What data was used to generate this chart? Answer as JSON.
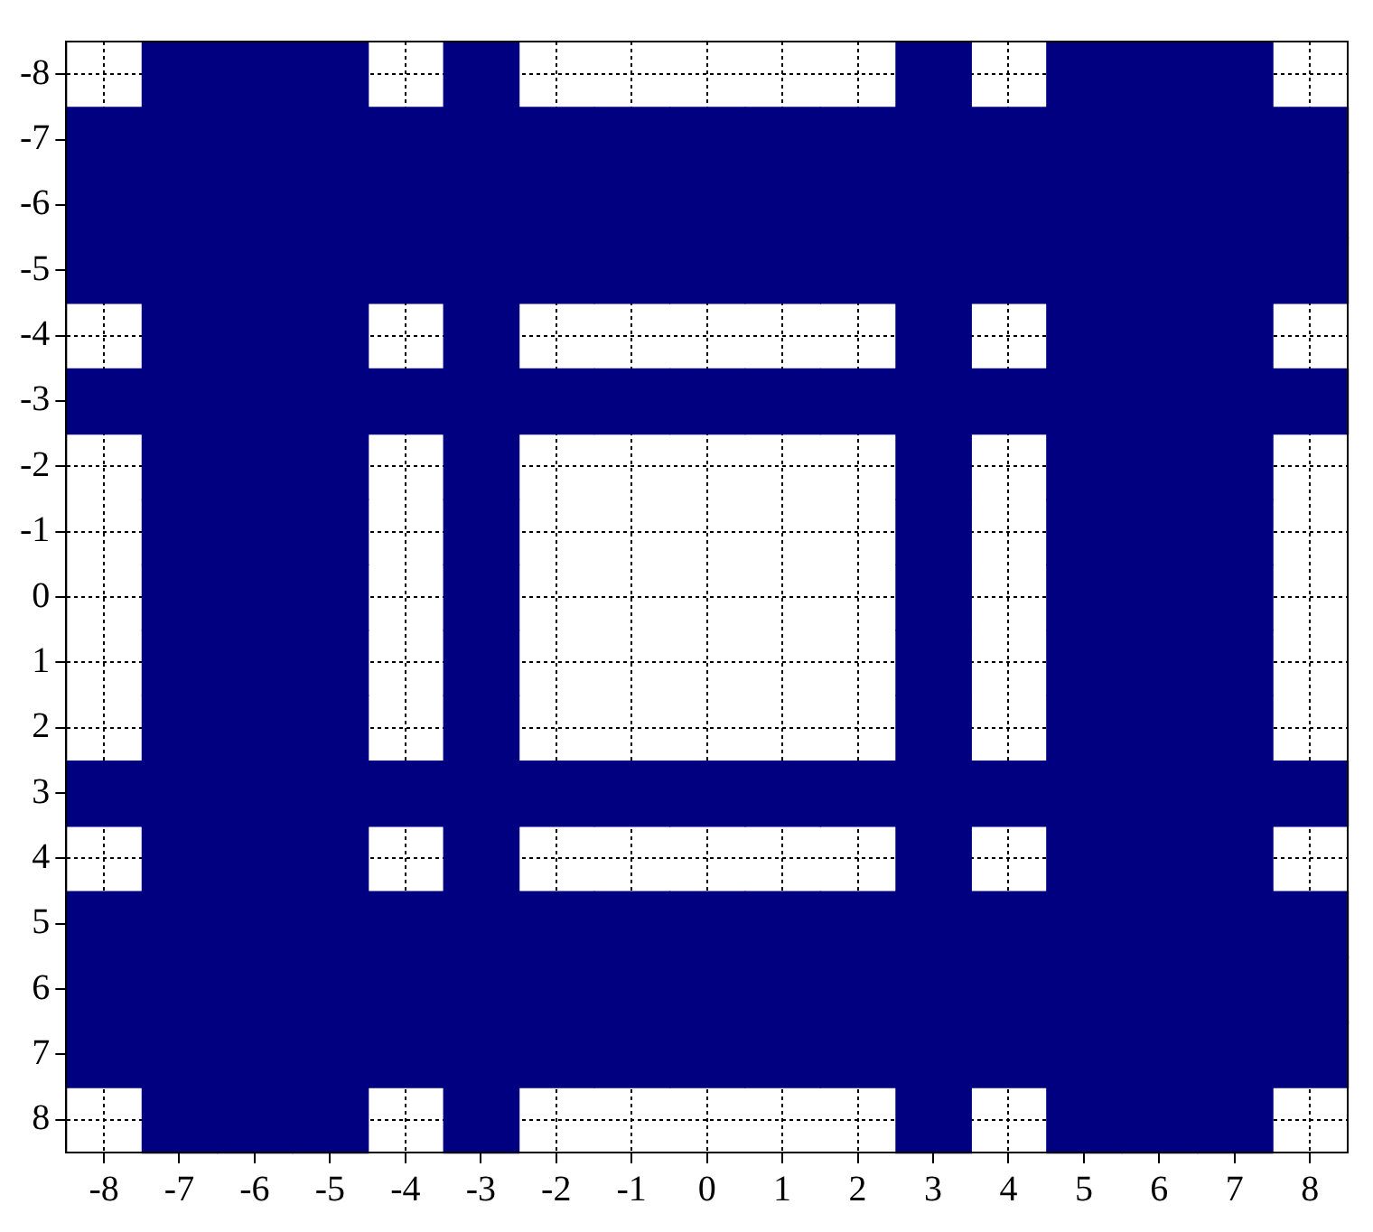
{
  "chart_data": {
    "type": "scatter",
    "marker": "square",
    "grid": true,
    "xlim": [
      -8.5,
      8.5
    ],
    "ylim": [
      8.5,
      -8.5
    ],
    "xticks": [
      -8,
      -7,
      -6,
      -5,
      -4,
      -3,
      -2,
      -1,
      0,
      1,
      2,
      3,
      4,
      5,
      6,
      7,
      8
    ],
    "yticks": [
      -8,
      -7,
      -6,
      -5,
      -4,
      -3,
      -2,
      -1,
      0,
      1,
      2,
      3,
      4,
      5,
      6,
      7,
      8
    ],
    "series": [
      {
        "color": "#000080",
        "x": [
          -7,
          -6,
          -5,
          -3,
          3,
          5,
          6,
          7,
          -8,
          -7,
          -6,
          -5,
          -4,
          -3,
          -2,
          -1,
          0,
          1,
          2,
          3,
          4,
          5,
          6,
          7,
          8,
          -8,
          -7,
          -6,
          -5,
          -4,
          -3,
          -2,
          -1,
          0,
          1,
          2,
          3,
          4,
          5,
          6,
          7,
          8,
          -8,
          -7,
          -6,
          -5,
          -4,
          -3,
          -2,
          -1,
          0,
          1,
          2,
          3,
          4,
          5,
          6,
          7,
          8,
          -7,
          -6,
          -5,
          -3,
          3,
          5,
          6,
          7,
          -8,
          -7,
          -6,
          -5,
          -4,
          -3,
          -2,
          -1,
          0,
          1,
          2,
          3,
          4,
          5,
          6,
          7,
          8,
          -7,
          -6,
          -5,
          -3,
          3,
          5,
          6,
          7,
          -7,
          -6,
          -5,
          -3,
          3,
          5,
          6,
          7,
          -7,
          -6,
          -5,
          -3,
          3,
          5,
          6,
          7,
          -7,
          -6,
          -5,
          -3,
          3,
          5,
          6,
          7,
          -7,
          -6,
          -5,
          -3,
          3,
          5,
          6,
          7,
          -8,
          -7,
          -6,
          -5,
          -4,
          -3,
          -2,
          -1,
          0,
          1,
          2,
          3,
          4,
          5,
          6,
          7,
          8,
          -7,
          -6,
          -5,
          -3,
          3,
          5,
          6,
          7,
          -8,
          -7,
          -6,
          -5,
          -4,
          -3,
          -2,
          -1,
          0,
          1,
          2,
          3,
          4,
          5,
          6,
          7,
          8,
          -8,
          -7,
          -6,
          -5,
          -4,
          -3,
          -2,
          -1,
          0,
          1,
          2,
          3,
          4,
          5,
          6,
          7,
          8,
          -8,
          -7,
          -6,
          -5,
          -4,
          -3,
          -2,
          -1,
          0,
          1,
          2,
          3,
          4,
          5,
          6,
          7,
          8,
          -7,
          -6,
          -5,
          -3,
          3,
          5,
          6,
          7
        ],
        "values": [
          -8,
          -8,
          -8,
          -8,
          -8,
          -8,
          -8,
          -8,
          -7,
          -7,
          -7,
          -7,
          -7,
          -7,
          -7,
          -7,
          -7,
          -7,
          -7,
          -7,
          -7,
          -7,
          -7,
          -7,
          -7,
          -6,
          -6,
          -6,
          -6,
          -6,
          -6,
          -6,
          -6,
          -6,
          -6,
          -6,
          -6,
          -6,
          -6,
          -6,
          -6,
          -6,
          -5,
          -5,
          -5,
          -5,
          -5,
          -5,
          -5,
          -5,
          -5,
          -5,
          -5,
          -5,
          -5,
          -5,
          -5,
          -5,
          -5,
          -4,
          -4,
          -4,
          -4,
          -4,
          -4,
          -4,
          -4,
          -3,
          -3,
          -3,
          -3,
          -3,
          -3,
          -3,
          -3,
          -3,
          -3,
          -3,
          -3,
          -3,
          -3,
          -3,
          -3,
          -3,
          -2,
          -2,
          -2,
          -2,
          -2,
          -2,
          -2,
          -2,
          -1,
          -1,
          -1,
          -1,
          -1,
          -1,
          -1,
          -1,
          0,
          0,
          0,
          0,
          0,
          0,
          0,
          0,
          1,
          1,
          1,
          1,
          1,
          1,
          1,
          1,
          2,
          2,
          2,
          2,
          2,
          2,
          2,
          2,
          3,
          3,
          3,
          3,
          3,
          3,
          3,
          3,
          3,
          3,
          3,
          3,
          3,
          3,
          3,
          3,
          3,
          4,
          4,
          4,
          4,
          4,
          4,
          4,
          4,
          5,
          5,
          5,
          5,
          5,
          5,
          5,
          5,
          5,
          5,
          5,
          5,
          5,
          5,
          5,
          5,
          5,
          6,
          6,
          6,
          6,
          6,
          6,
          6,
          6,
          6,
          6,
          6,
          6,
          6,
          6,
          6,
          6,
          6,
          7,
          7,
          7,
          7,
          7,
          7,
          7,
          7,
          7,
          7,
          7,
          7,
          7,
          7,
          7,
          7,
          7,
          8,
          8,
          8,
          8,
          8,
          8,
          8,
          8
        ]
      }
    ]
  }
}
